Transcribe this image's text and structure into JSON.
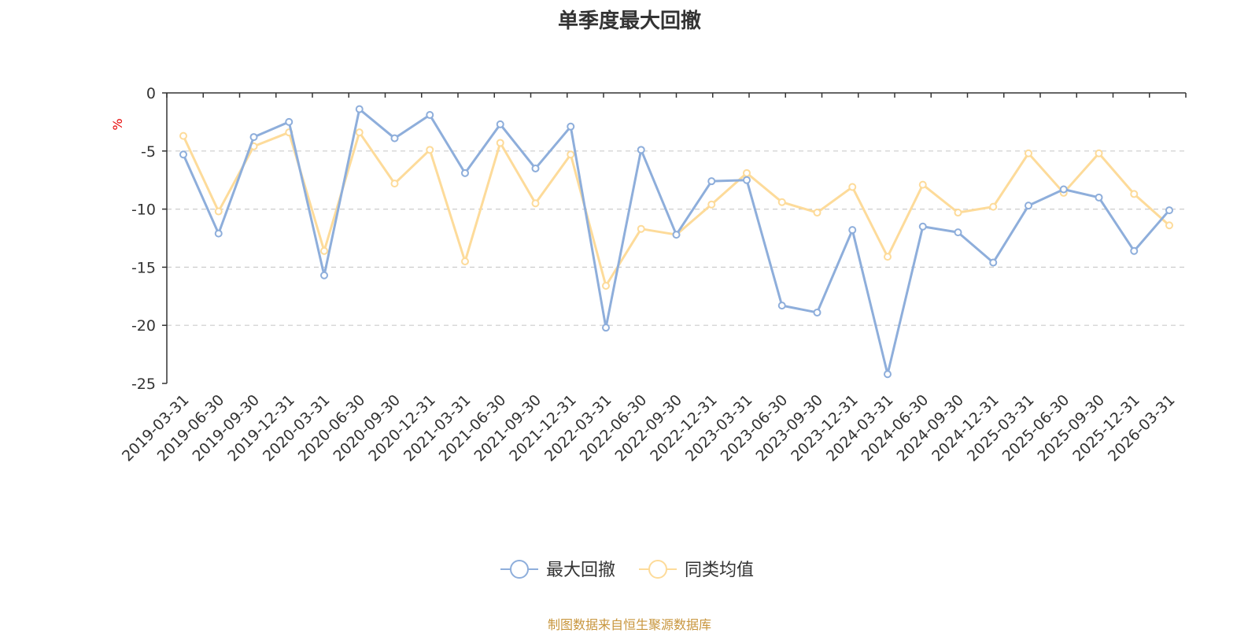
{
  "source_text": "制图数据来自恒生聚源数据库",
  "colors": {
    "series1": "#8eaedb",
    "series2": "#fddb9a",
    "unit": "#e60000",
    "source": "#c8963e",
    "axis": "#333333",
    "grid": "#cccccc"
  },
  "chart_data": {
    "type": "line",
    "title": "单季度最大回撤",
    "ylabel": "%",
    "ylim": [
      -25,
      0
    ],
    "yticks": [
      0,
      -5,
      -10,
      -15,
      -20,
      -25
    ],
    "grid": "horizontal-dashed",
    "legend_position": "bottom-center",
    "categories": [
      "2019-03-31",
      "2019-06-30",
      "2019-09-30",
      "2019-12-31",
      "2020-03-31",
      "2020-06-30",
      "2020-09-30",
      "2020-12-31",
      "2021-03-31",
      "2021-06-30",
      "2021-09-30",
      "2021-12-31",
      "2022-03-31",
      "2022-06-30",
      "2022-09-30",
      "2022-12-31",
      "2023-03-31",
      "2023-06-30",
      "2023-09-30",
      "2023-12-31",
      "2024-03-31",
      "2024-06-30",
      "2024-09-30",
      "2024-12-31",
      "2025-03-31",
      "2025-06-30",
      "2025-09-30",
      "2025-12-31",
      "2026-03-31"
    ],
    "series": [
      {
        "name": "最大回撤",
        "values": [
          -5.3,
          -12.1,
          -3.8,
          -2.5,
          -15.7,
          -1.4,
          -3.9,
          -1.9,
          -6.9,
          -2.7,
          -6.5,
          -2.9,
          -20.2,
          -4.9,
          -12.2,
          -7.6,
          -7.5,
          -18.3,
          -18.9,
          -11.8,
          -24.2,
          -11.5,
          -12.0,
          -14.6,
          -9.7,
          -8.3,
          -9.0,
          -13.6,
          -10.1
        ]
      },
      {
        "name": "同类均值",
        "values": [
          -3.7,
          -10.2,
          -4.6,
          -3.4,
          -13.6,
          -3.4,
          -7.8,
          -4.9,
          -14.5,
          -4.3,
          -9.5,
          -5.3,
          -16.6,
          -11.7,
          -12.2,
          -9.6,
          -6.9,
          -9.4,
          -10.3,
          -8.1,
          -14.1,
          -7.9,
          -10.3,
          -9.8,
          -5.2,
          -8.6,
          -5.2,
          -8.7,
          -11.4
        ]
      }
    ]
  }
}
